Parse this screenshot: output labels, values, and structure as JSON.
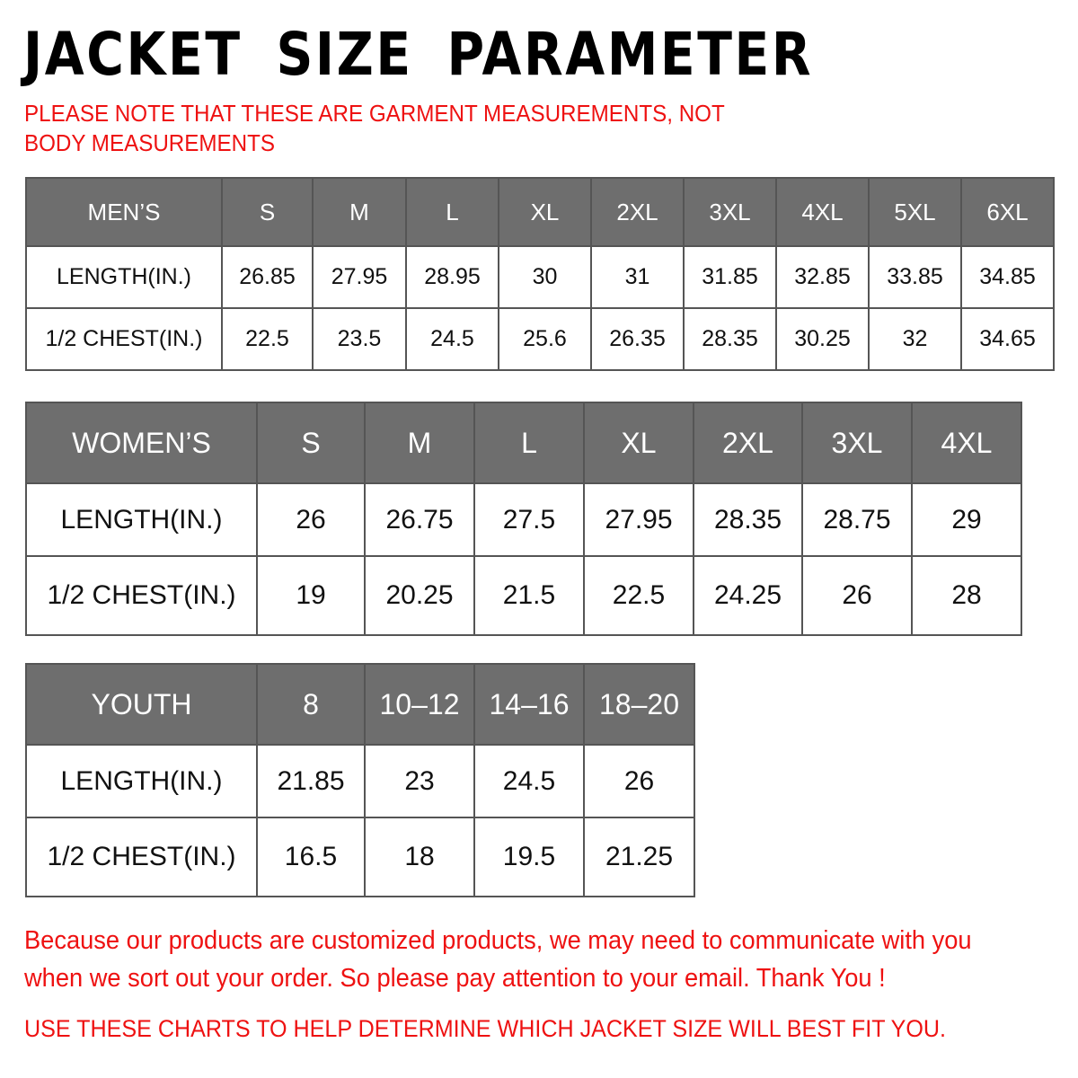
{
  "title": "JACKET SIZE PARAMETER",
  "note": "PLEASE NOTE THAT THESE ARE GARMENT MEASUREMENTS, NOT BODY MEASUREMENTS",
  "tables": [
    {
      "id": "men",
      "header": [
        "MEN’S",
        "S",
        "M",
        "L",
        "XL",
        "2XL",
        "3XL",
        "4XL",
        "5XL",
        "6XL"
      ],
      "rows": [
        [
          "LENGTH(IN.)",
          "26.85",
          "27.95",
          "28.95",
          "30",
          "31",
          "31.85",
          "32.85",
          "33.85",
          "34.85"
        ],
        [
          "1/2 CHEST(IN.)",
          "22.5",
          "23.5",
          "24.5",
          "25.6",
          "26.35",
          "28.35",
          "30.25",
          "32",
          "34.65"
        ]
      ]
    },
    {
      "id": "women",
      "header": [
        "WOMEN’S",
        "S",
        "M",
        "L",
        "XL",
        "2XL",
        "3XL",
        "4XL"
      ],
      "rows": [
        [
          "LENGTH(IN.)",
          "26",
          "26.75",
          "27.5",
          "27.95",
          "28.35",
          "28.75",
          "29"
        ],
        [
          "1/2 CHEST(IN.)",
          "19",
          "20.25",
          "21.5",
          "22.5",
          "24.25",
          "26",
          "28"
        ]
      ]
    },
    {
      "id": "youth",
      "header": [
        "YOUTH",
        "8",
        "10–12",
        "14–16",
        "18–20"
      ],
      "rows": [
        [
          "LENGTH(IN.)",
          "21.85",
          "23",
          "24.5",
          "26"
        ],
        [
          "1/2 CHEST(IN.)",
          "16.5",
          "18",
          "19.5",
          "21.25"
        ]
      ]
    }
  ],
  "footer": {
    "message": "Because our products are customized products, we may need to communicate with you when we sort out your order. So please pay attention to your email. Thank You !",
    "advice": "USE THESE CHARTS TO HELP DETERMINE WHICH JACKET SIZE WILL BEST FIT YOU."
  },
  "colors": {
    "header_bg": "#6e6e6e",
    "note_red": "#ee1111"
  }
}
